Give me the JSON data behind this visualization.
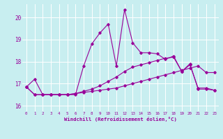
{
  "xlabel": "Windchill (Refroidissement éolien,°C)",
  "bg_color": "#c8eef0",
  "grid_color": "#ffffff",
  "line_color": "#990099",
  "xlim": [
    -0.5,
    23.5
  ],
  "ylim": [
    15.75,
    20.6
  ],
  "yticks": [
    16,
    17,
    18,
    19,
    20
  ],
  "xticks": [
    0,
    1,
    2,
    3,
    4,
    5,
    6,
    7,
    8,
    9,
    10,
    11,
    12,
    13,
    14,
    15,
    16,
    17,
    18,
    19,
    20,
    21,
    22,
    23
  ],
  "line1_x": [
    0,
    1,
    2,
    3,
    4,
    5,
    6,
    7,
    8,
    9,
    10,
    11,
    12,
    13,
    14,
    15,
    16,
    17,
    18,
    19,
    20,
    21,
    22,
    23
  ],
  "line1_y": [
    16.85,
    17.2,
    16.5,
    16.5,
    16.5,
    16.5,
    16.5,
    17.8,
    18.8,
    19.3,
    19.7,
    17.8,
    20.35,
    18.85,
    18.4,
    18.4,
    18.35,
    18.1,
    18.25,
    17.55,
    17.9,
    16.75,
    16.75,
    16.7
  ],
  "line2_x": [
    0,
    1,
    2,
    3,
    4,
    5,
    6,
    7,
    8,
    9,
    10,
    11,
    12,
    13,
    14,
    15,
    16,
    17,
    18,
    19,
    20,
    21,
    22,
    23
  ],
  "line2_y": [
    16.85,
    16.5,
    16.5,
    16.5,
    16.5,
    16.5,
    16.55,
    16.65,
    16.75,
    16.9,
    17.1,
    17.3,
    17.55,
    17.75,
    17.85,
    17.95,
    18.05,
    18.15,
    18.2,
    17.55,
    17.85,
    16.8,
    16.8,
    16.7
  ],
  "line3_x": [
    0,
    1,
    2,
    3,
    4,
    5,
    6,
    7,
    8,
    9,
    10,
    11,
    12,
    13,
    14,
    15,
    16,
    17,
    18,
    19,
    20,
    21,
    22,
    23
  ],
  "line3_y": [
    16.85,
    16.5,
    16.5,
    16.5,
    16.5,
    16.5,
    16.55,
    16.6,
    16.65,
    16.7,
    16.75,
    16.8,
    16.9,
    17.0,
    17.1,
    17.2,
    17.3,
    17.4,
    17.5,
    17.6,
    17.7,
    17.8,
    17.5,
    17.5
  ]
}
